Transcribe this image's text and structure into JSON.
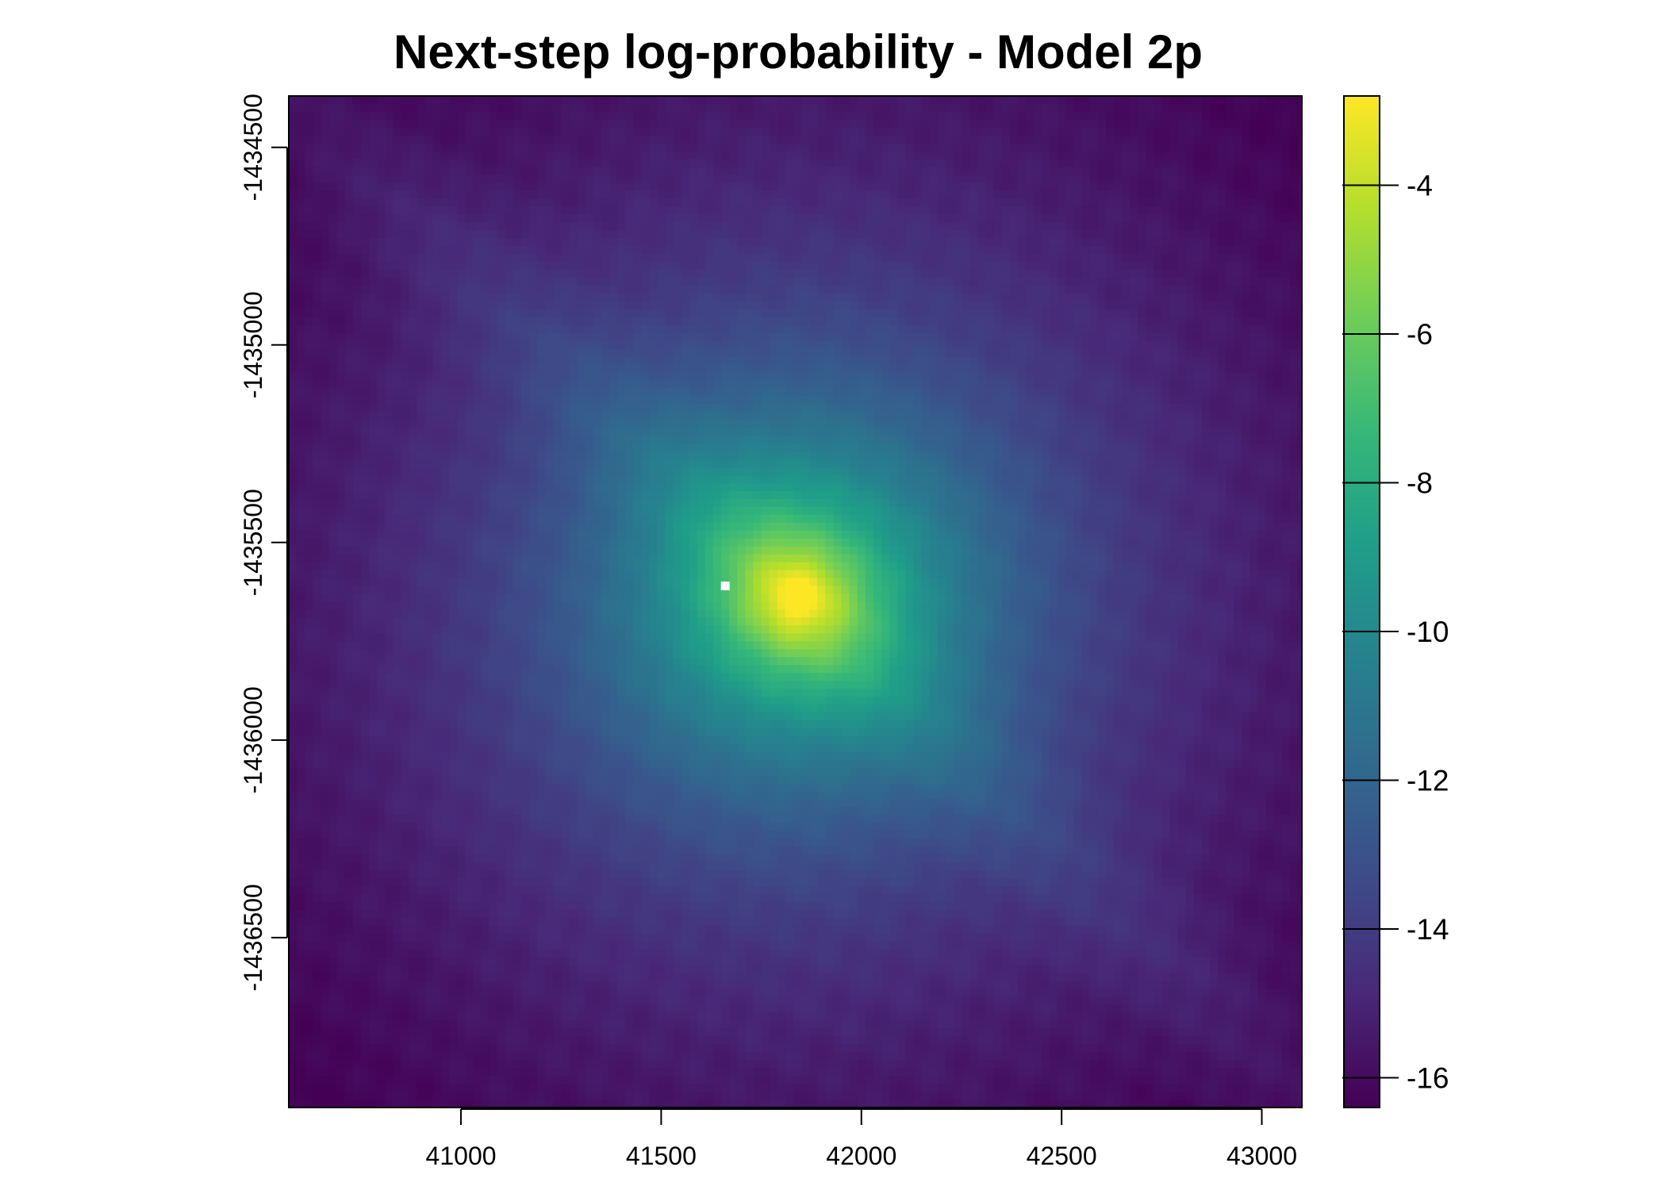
{
  "chart_data": {
    "type": "heatmap",
    "title": "Next-step log-probability - Model 2p",
    "xlabel": "",
    "ylabel": "",
    "xlim": [
      40570,
      43100
    ],
    "ylim": [
      -1436930,
      -1434370
    ],
    "x_ticks": [
      41000,
      41500,
      42000,
      42500,
      43000
    ],
    "x_tick_labels": [
      "41000",
      "41500",
      "42000",
      "42500",
      "43000"
    ],
    "y_ticks": [
      -1434500,
      -1435000,
      -1435500,
      -1436000,
      -1436500
    ],
    "y_tick_labels": [
      "-1434500",
      "-1435000",
      "-1435500",
      "-1436000",
      "-1436500"
    ],
    "colorbar": {
      "range": [
        -16.4,
        -2.8
      ],
      "ticks": [
        -4,
        -6,
        -8,
        -10,
        -12,
        -14,
        -16
      ],
      "tick_labels": [
        "-4",
        "-6",
        "-8",
        "-10",
        "-12",
        "-14",
        "-16"
      ],
      "palette": "viridis",
      "colors": [
        "#440154",
        "#482878",
        "#3E4A89",
        "#31688E",
        "#26828E",
        "#1F9E89",
        "#35B779",
        "#6DCD59",
        "#B4DE2C",
        "#FDE725"
      ]
    },
    "peak": {
      "x": 41840,
      "y": -1435640,
      "value": -2.8
    },
    "marker": {
      "x": 41660,
      "y": -1435610,
      "color": "#ffffff"
    },
    "grid": false
  }
}
